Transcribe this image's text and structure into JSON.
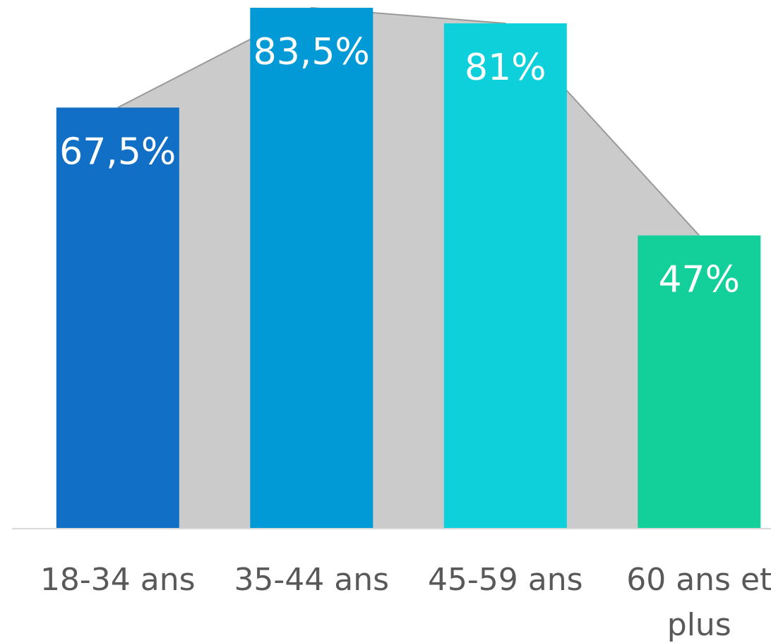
{
  "chart_data": {
    "type": "bar",
    "categories": [
      [
        "18-34 ans"
      ],
      [
        "35-44 ans"
      ],
      [
        "45-59 ans"
      ],
      [
        "60 ans et",
        "plus"
      ]
    ],
    "values": [
      67.5,
      83.5,
      81,
      47
    ],
    "value_labels": [
      "67,5%",
      "83,5%",
      "81%",
      "47%"
    ],
    "colors": [
      "#1170c6",
      "#019ad6",
      "#0dd0da",
      "#13cf9a"
    ],
    "background_area_color": "#cbcbcb",
    "area_line_color": "#9a9a9a",
    "baseline_color": "#d9d9d9",
    "ylim": [
      0,
      83.5
    ],
    "title": "",
    "xlabel": "",
    "ylabel": "",
    "grid": false,
    "legend": "none"
  }
}
